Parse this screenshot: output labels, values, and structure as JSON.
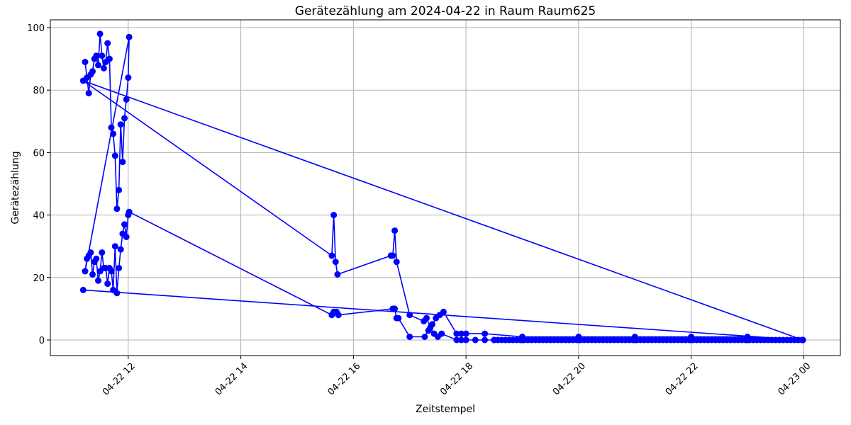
{
  "chart_data": {
    "type": "line",
    "title": "Gerätezählung am 2024-04-22 in Raum Raum625",
    "xlabel": "Zeitstempel",
    "ylabel": "Gerätezählung",
    "xlim": [
      "2024-04-22 10:37",
      "2024-04-23 00:39"
    ],
    "ylim": [
      -5,
      102.5
    ],
    "grid": true,
    "x_ticks": [
      {
        "value": "2024-04-22 12:00",
        "label": "04-22 12"
      },
      {
        "value": "2024-04-22 14:00",
        "label": "04-22 14"
      },
      {
        "value": "2024-04-22 16:00",
        "label": "04-22 16"
      },
      {
        "value": "2024-04-22 18:00",
        "label": "04-22 18"
      },
      {
        "value": "2024-04-22 20:00",
        "label": "04-22 20"
      },
      {
        "value": "2024-04-22 22:00",
        "label": "04-22 22"
      },
      {
        "value": "2024-04-23 00:00",
        "label": "04-23 00"
      }
    ],
    "y_ticks": [
      {
        "value": 0,
        "label": "0"
      },
      {
        "value": 20,
        "label": "20"
      },
      {
        "value": 40,
        "label": "40"
      },
      {
        "value": 60,
        "label": "60"
      },
      {
        "value": 80,
        "label": "80"
      },
      {
        "value": 100,
        "label": "100"
      }
    ],
    "colors": {
      "series": "#0000ff",
      "grid": "#b0b0b0",
      "axes": "#000000"
    },
    "series": [
      {
        "x": [
          "2024-04-22 11:14",
          "2024-04-22 11:16",
          "2024-04-22 11:18",
          "2024-04-22 11:20",
          "2024-04-22 11:22",
          "2024-04-22 11:24",
          "2024-04-22 11:26",
          "2024-04-22 11:28",
          "2024-04-22 11:30",
          "2024-04-22 11:32",
          "2024-04-22 11:34",
          "2024-04-22 11:36",
          "2024-04-22 11:38",
          "2024-04-22 11:40",
          "2024-04-22 11:42",
          "2024-04-22 11:44",
          "2024-04-22 11:46",
          "2024-04-22 11:48",
          "2024-04-22 11:50",
          "2024-04-22 11:52",
          "2024-04-22 11:54",
          "2024-04-22 11:56",
          "2024-04-22 11:58",
          "2024-04-22 12:00",
          "2024-04-22 12:01",
          "2024-04-22 11:14",
          "2024-04-22 11:16",
          "2024-04-22 11:18",
          "2024-04-22 11:20",
          "2024-04-22 11:22",
          "2024-04-22 11:24",
          "2024-04-22 11:26",
          "2024-04-22 11:28",
          "2024-04-22 11:30",
          "2024-04-22 11:32",
          "2024-04-22 11:34",
          "2024-04-22 11:36",
          "2024-04-22 11:38",
          "2024-04-22 11:40",
          "2024-04-22 11:42",
          "2024-04-22 11:44",
          "2024-04-22 11:46",
          "2024-04-22 11:48",
          "2024-04-22 11:50",
          "2024-04-22 11:52",
          "2024-04-22 11:54",
          "2024-04-22 11:56",
          "2024-04-22 11:58",
          "2024-04-22 12:00",
          "2024-04-22 12:01",
          "2024-04-22 15:37",
          "2024-04-22 15:39",
          "2024-04-22 15:40",
          "2024-04-22 15:42",
          "2024-04-22 15:44",
          "2024-04-22 16:42",
          "2024-04-22 16:44",
          "2024-04-22 16:46",
          "2024-04-22 16:48",
          "2024-04-22 17:00",
          "2024-04-22 17:16",
          "2024-04-22 17:20",
          "2024-04-22 17:24",
          "2024-04-22 17:28",
          "2024-04-22 17:32",
          "2024-04-22 17:36",
          "2024-04-22 17:50",
          "2024-04-22 17:55",
          "2024-04-22 18:00",
          "2024-04-22 18:20",
          "2024-04-22 19:00",
          "2024-04-22 20:00",
          "2024-04-22 21:00",
          "2024-04-22 22:00",
          "2024-04-22 23:00",
          "2024-04-22 23:59",
          "2024-04-22 11:12",
          "2024-04-22 15:37",
          "2024-04-22 15:39",
          "2024-04-22 15:41",
          "2024-04-22 15:43",
          "2024-04-22 16:40",
          "2024-04-22 16:42",
          "2024-04-22 16:44",
          "2024-04-22 16:46",
          "2024-04-22 17:00",
          "2024-04-22 17:15",
          "2024-04-22 17:18",
          "2024-04-22 17:22",
          "2024-04-22 17:26",
          "2024-04-22 17:30",
          "2024-04-22 17:34",
          "2024-04-22 17:50",
          "2024-04-22 17:55",
          "2024-04-22 18:00",
          "2024-04-22 18:10",
          "2024-04-22 18:20",
          "2024-04-22 18:30",
          "2024-04-22 19:00",
          "2024-04-22 20:00",
          "2024-04-22 21:00",
          "2024-04-22 22:00",
          "2024-04-22 23:00",
          "2024-04-22 23:59",
          "2024-04-22 11:12",
          "2024-04-22 23:59"
        ],
        "y": [
          89,
          84,
          79,
          85,
          86,
          90,
          91,
          88,
          98,
          91,
          87,
          89,
          95,
          90,
          68,
          66,
          59,
          42,
          48,
          69,
          57,
          71,
          77,
          84,
          97,
          22,
          26,
          27,
          28,
          21,
          25,
          26,
          19,
          22,
          28,
          23,
          23,
          18,
          23,
          22,
          16,
          30,
          15,
          23,
          29,
          34,
          37,
          33,
          40,
          41,
          8,
          9,
          9,
          9,
          8,
          10,
          10,
          7,
          7,
          1,
          1,
          3,
          5,
          7,
          8,
          9,
          2,
          2,
          2,
          2,
          1,
          1,
          1,
          1,
          1,
          0,
          83,
          27,
          40,
          25,
          21,
          27,
          27,
          35,
          25,
          8,
          6,
          7,
          4,
          2,
          1,
          2,
          0,
          0,
          0,
          0,
          0,
          0,
          0,
          0,
          0,
          0,
          0,
          0,
          16,
          0
        ]
      }
    ]
  }
}
